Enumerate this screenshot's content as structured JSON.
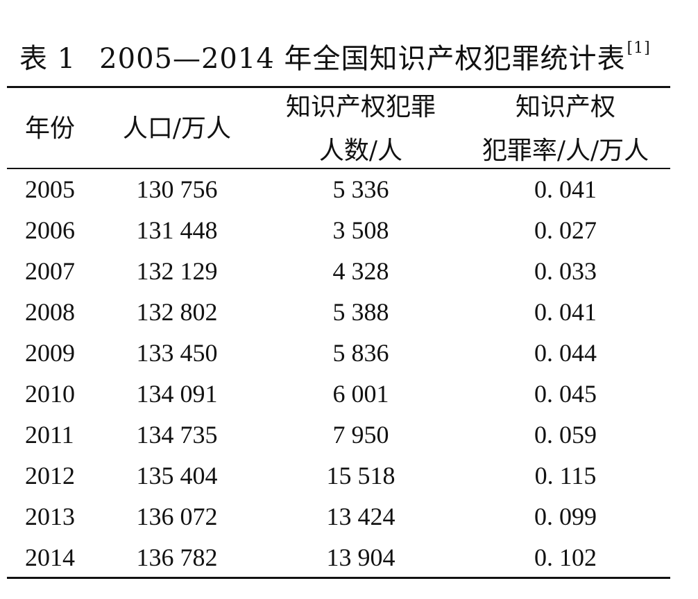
{
  "caption": {
    "label": "表 1",
    "title": "2005—2014 年全国知识产权犯罪统计表",
    "ref": "[1]"
  },
  "header": {
    "year": "年份",
    "population": "人口/万人",
    "crimes_line1": "知识产权犯罪",
    "crimes_line2": "人数/人",
    "rate_line1": "知识产权",
    "rate_line2": "犯罪率/人/万人"
  },
  "rows": [
    {
      "year": "2005",
      "population": "130 756",
      "crimes": "5 336",
      "rate": "0. 041"
    },
    {
      "year": "2006",
      "population": "131 448",
      "crimes": "3 508",
      "rate": "0. 027"
    },
    {
      "year": "2007",
      "population": "132 129",
      "crimes": "4 328",
      "rate": "0. 033"
    },
    {
      "year": "2008",
      "population": "132 802",
      "crimes": "5 388",
      "rate": "0. 041"
    },
    {
      "year": "2009",
      "population": "133 450",
      "crimes": "5 836",
      "rate": "0. 044"
    },
    {
      "year": "2010",
      "population": "134 091",
      "crimes": "6 001",
      "rate": "0. 045"
    },
    {
      "year": "2011",
      "population": "134 735",
      "crimes": "7 950",
      "rate": "0. 059"
    },
    {
      "year": "2012",
      "population": "135 404",
      "crimes": "15 518",
      "rate": "0. 115"
    },
    {
      "year": "2013",
      "population": "136 072",
      "crimes": "13 424",
      "rate": "0. 099"
    },
    {
      "year": "2014",
      "population": "136 782",
      "crimes": "13 904",
      "rate": "0. 102"
    }
  ]
}
